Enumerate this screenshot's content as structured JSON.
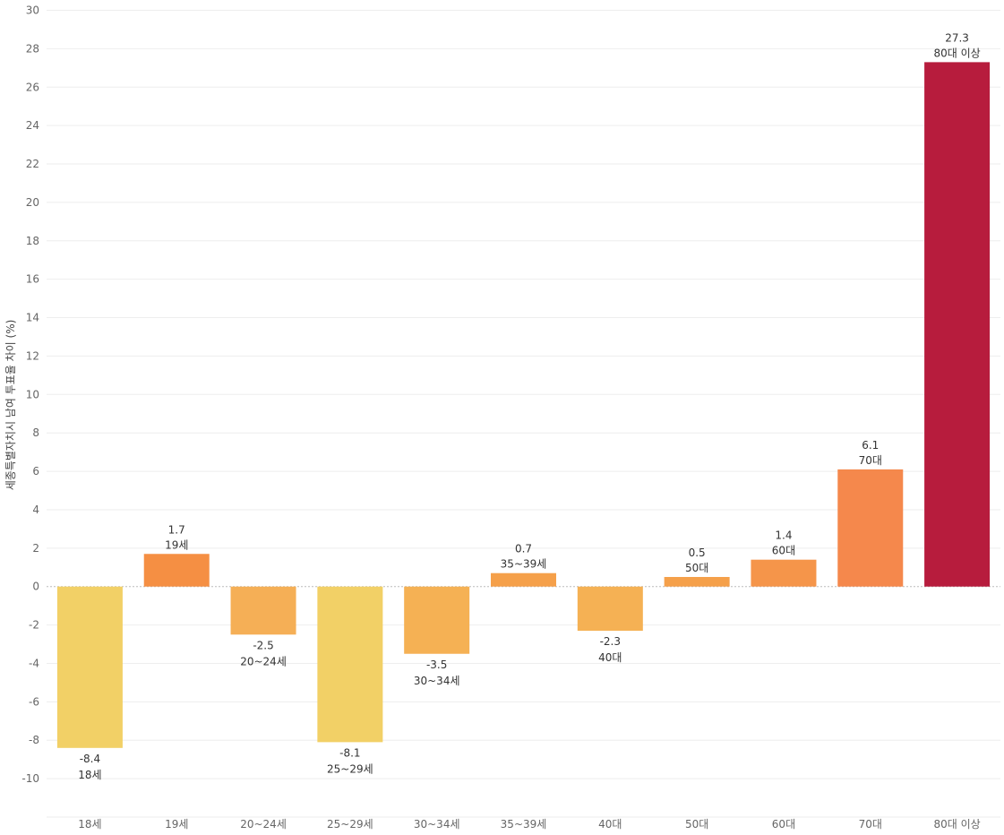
{
  "chart_data": {
    "type": "bar",
    "title": "",
    "xlabel": "",
    "ylabel": "세종특별자치시 남여 투표율 차이 (%)",
    "ylim": [
      -12,
      30
    ],
    "yticks": [
      -10,
      -8,
      -6,
      -4,
      -2,
      0,
      2,
      4,
      6,
      8,
      10,
      12,
      14,
      16,
      18,
      20,
      22,
      24,
      26,
      28,
      30
    ],
    "categories": [
      "18세",
      "19세",
      "20~24세",
      "25~29세",
      "30~34세",
      "35~39세",
      "40대",
      "50대",
      "60대",
      "70대",
      "80대 이상"
    ],
    "values": [
      -8.4,
      1.7,
      -2.5,
      -8.1,
      -3.5,
      0.7,
      -2.3,
      0.5,
      1.4,
      6.1,
      27.3
    ],
    "value_labels": [
      "-8.4",
      "1.7",
      "-2.5",
      "-8.1",
      "-3.5",
      "0.7",
      "-2.3",
      "0.5",
      "1.4",
      "6.1",
      "27.3"
    ],
    "colors": [
      "#f2d066",
      "#f58f43",
      "#f5af56",
      "#f2d066",
      "#f5b154",
      "#f5a04a",
      "#f5b154",
      "#f5a04a",
      "#f5954a",
      "#f5884c",
      "#b71c3d"
    ],
    "grid": true,
    "legend": "none"
  }
}
